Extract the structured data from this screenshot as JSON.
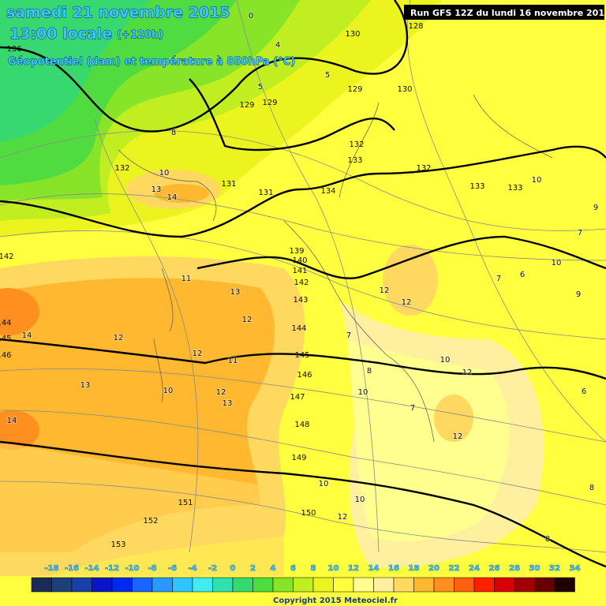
{
  "header": {
    "date": "samedi 21 novembre 2015",
    "time": "13:00 locale",
    "lead": "(+120h)",
    "subtitle": "Géopotentiel (dam) et température à 850hPa (°C)",
    "run": "Run GFS 12Z du lundi 16 novembre 2015"
  },
  "legend": {
    "labels": [
      -18,
      -16,
      -14,
      -12,
      -10,
      -8,
      -6,
      -4,
      -2,
      0,
      2,
      4,
      6,
      8,
      10,
      12,
      14,
      16,
      18,
      20,
      22,
      24,
      26,
      28,
      30,
      32,
      34
    ],
    "colors": [
      "#1a2b55",
      "#1d3f7a",
      "#1a3fa8",
      "#0a14c8",
      "#0028f0",
      "#1a64ff",
      "#2a98ff",
      "#30c4ff",
      "#40ecf0",
      "#30e0b0",
      "#38d870",
      "#50dc40",
      "#88e428",
      "#c0ee20",
      "#ecf420",
      "#ffff40",
      "#ffff90",
      "#fff0a0",
      "#ffd860",
      "#ffb830",
      "#ff9020",
      "#ff6010",
      "#ff2000",
      "#d80000",
      "#a00000",
      "#680000",
      "#200000"
    ]
  },
  "geopotential_labels": [
    136,
    130,
    128,
    129,
    129,
    129,
    130,
    132,
    132,
    133,
    132,
    133,
    133,
    131,
    131,
    134,
    139,
    140,
    141,
    142,
    143,
    144,
    145,
    146,
    147,
    148,
    149,
    151,
    152,
    153,
    150,
    142,
    144,
    145,
    146
  ],
  "temperature_labels": [
    0,
    4,
    5,
    5,
    8,
    10,
    13,
    14,
    11,
    13,
    12,
    12,
    14,
    13,
    14,
    12,
    11,
    10,
    12,
    13,
    10,
    8,
    7,
    12,
    12,
    12,
    10,
    12,
    7,
    10,
    10,
    12,
    8,
    10,
    10,
    7,
    6,
    7,
    9,
    6,
    8,
    9
  ],
  "copyright": "Copyright 2015 Meteociel.fr"
}
